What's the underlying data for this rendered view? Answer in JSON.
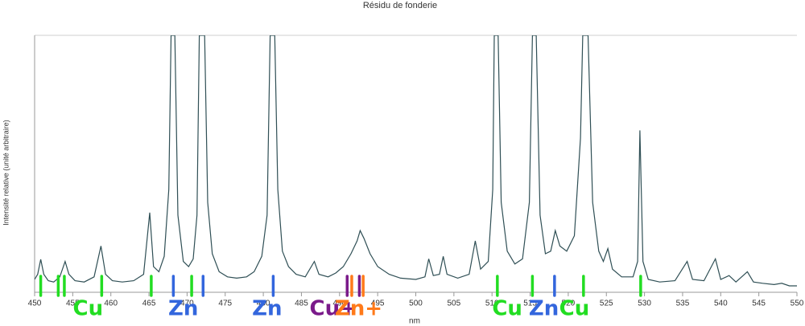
{
  "chart_data": {
    "type": "line",
    "title": "Résidu de fonderie",
    "x_label": "nm",
    "y_label": "Intensité relative (unité arbitraire)",
    "xlim": [
      450,
      550
    ],
    "xticks": [
      450,
      455,
      460,
      465,
      470,
      475,
      480,
      485,
      490,
      495,
      500,
      505,
      510,
      515,
      520,
      525,
      530,
      535,
      540,
      545,
      550
    ],
    "ylim": [
      0,
      100
    ],
    "series": [
      {
        "color": "#2f4f55",
        "x": [
          450,
          450.4,
          450.8,
          451.2,
          451.8,
          452.5,
          453.3,
          454.0,
          454.5,
          455.3,
          456.5,
          457.8,
          458.7,
          459.3,
          460.2,
          461.5,
          463,
          464.3,
          465.1,
          465.6,
          466.3,
          467,
          467.6,
          467.9,
          468.4,
          468.8,
          469.5,
          470.2,
          470.8,
          471.3,
          471.6,
          472.3,
          472.7,
          473.3,
          474.2,
          475.3,
          476.5,
          477.8,
          478.8,
          479.8,
          480.5,
          480.9,
          481.5,
          481.9,
          482.5,
          483.3,
          484.3,
          485.5,
          486.7,
          487.3,
          488.5,
          489.5,
          490.5,
          491.5,
          492.3,
          492.7,
          493.2,
          494,
          495,
          496.5,
          498,
          500,
          501.2,
          501.7,
          502.3,
          503.1,
          503.6,
          504.1,
          505.5,
          507,
          507.8,
          508.5,
          509.5,
          510.1,
          510.3,
          510.8,
          511.2,
          512,
          513,
          514,
          514.9,
          515.3,
          515.8,
          516.3,
          517,
          517.7,
          518.3,
          518.9,
          519.8,
          520.8,
          521.6,
          521.9,
          522.6,
          523.2,
          524,
          524.6,
          525.2,
          525.8,
          527,
          528.5,
          529.1,
          529.4,
          529.8,
          530.5,
          532,
          534,
          535.6,
          536.3,
          537.8,
          539.3,
          540,
          541.1,
          542,
          543.5,
          544.3,
          545.5,
          547,
          548,
          549,
          550
        ],
        "values": [
          5,
          7,
          12.8,
          7,
          4.5,
          4,
          6,
          12,
          7,
          4.5,
          4,
          6,
          18,
          7,
          4.5,
          4,
          4.5,
          7,
          31,
          10,
          8,
          14,
          40,
          100,
          100,
          30,
          12,
          10,
          13,
          30,
          100,
          100,
          35,
          15,
          8,
          6,
          5.5,
          6,
          8,
          14,
          30,
          100,
          100,
          40,
          16,
          10,
          7,
          6,
          12,
          7,
          6,
          7.5,
          10,
          15,
          20,
          24,
          21,
          15,
          10,
          7,
          5.5,
          5,
          6,
          13,
          6.5,
          7,
          14,
          7,
          5.5,
          7,
          20,
          9,
          12,
          40,
          100,
          100,
          35,
          16,
          11,
          13,
          35,
          100,
          100,
          30,
          15,
          16,
          24,
          18,
          16,
          22,
          60,
          100,
          100,
          35,
          16,
          12,
          17,
          9,
          6,
          6,
          12,
          63,
          12,
          5,
          4,
          4.5,
          12,
          5,
          4.5,
          13,
          5,
          6.5,
          4,
          8,
          4,
          3.5,
          3,
          3.5,
          2.5,
          2.5
        ]
      }
    ],
    "annotations": {
      "bars": [
        {
          "x": 450.8,
          "color": "#22dd22"
        },
        {
          "x": 453.1,
          "color": "#22dd22"
        },
        {
          "x": 453.9,
          "color": "#22dd22"
        },
        {
          "x": 458.8,
          "color": "#22dd22"
        },
        {
          "x": 465.3,
          "color": "#22dd22"
        },
        {
          "x": 470.6,
          "color": "#22dd22"
        },
        {
          "x": 468.2,
          "color": "#3366dd"
        },
        {
          "x": 472.1,
          "color": "#3366dd"
        },
        {
          "x": 481.3,
          "color": "#3366dd"
        },
        {
          "x": 491.0,
          "color": "#7a1a8a"
        },
        {
          "x": 491.6,
          "color": "#ff7a1a"
        },
        {
          "x": 492.6,
          "color": "#7a1a8a"
        },
        {
          "x": 493.1,
          "color": "#ff7a1a"
        },
        {
          "x": 510.7,
          "color": "#22dd22"
        },
        {
          "x": 515.3,
          "color": "#22dd22"
        },
        {
          "x": 518.2,
          "color": "#3366dd"
        },
        {
          "x": 522.0,
          "color": "#22dd22"
        },
        {
          "x": 529.5,
          "color": "#22dd22"
        }
      ],
      "labels": [
        {
          "text": "Cu",
          "x": 457.0,
          "color": "#22dd22"
        },
        {
          "text": "Zn",
          "x": 469.5,
          "color": "#3366dd"
        },
        {
          "text": "Zn",
          "x": 480.5,
          "color": "#3366dd"
        },
        {
          "text": "Cu+",
          "x": 489.2,
          "color": "#7a1a8a"
        },
        {
          "text": "Zn+",
          "x": 492.5,
          "color": "#ff7a1a"
        },
        {
          "text": "Cu",
          "x": 512.0,
          "color": "#22dd22"
        },
        {
          "text": "Zn",
          "x": 516.8,
          "color": "#3366dd"
        },
        {
          "text": "Cu",
          "x": 520.8,
          "color": "#22dd22"
        }
      ]
    }
  }
}
